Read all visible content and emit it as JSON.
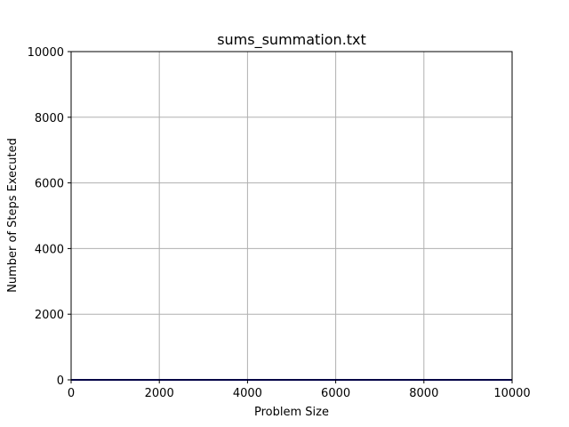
{
  "chart_data": {
    "type": "line",
    "title": "sums_summation.txt",
    "xlabel": "Problem Size",
    "ylabel": "Number of Steps Executed",
    "xlim": [
      0,
      10000
    ],
    "ylim": [
      0,
      10000
    ],
    "xticks": [
      "0",
      "2000",
      "4000",
      "6000",
      "8000",
      "10000"
    ],
    "yticks": [
      "0",
      "2000",
      "4000",
      "6000",
      "8000",
      "10000"
    ],
    "grid": true,
    "series": [
      {
        "color": "#00008b",
        "x": [
          0,
          10000
        ],
        "y": [
          0,
          0
        ]
      }
    ]
  }
}
